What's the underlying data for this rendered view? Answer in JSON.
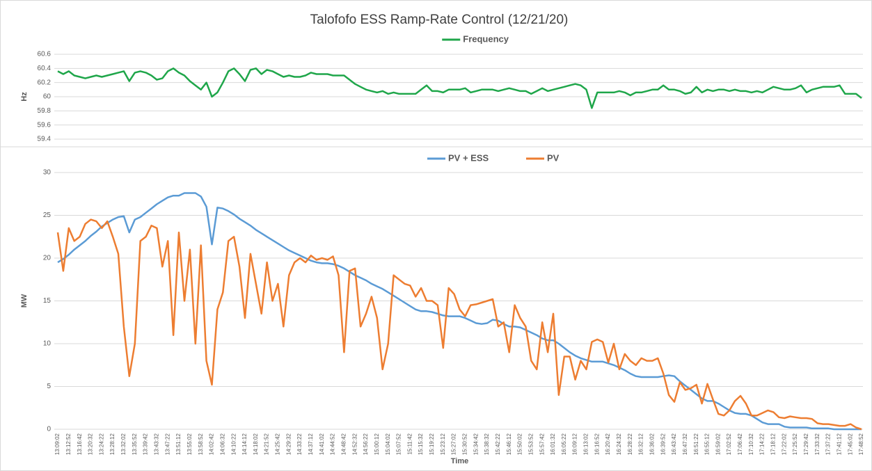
{
  "chart_data": [
    {
      "type": "line",
      "title": "Talofofo ESS Ramp-Rate Control (12/21/20)",
      "ylabel": "Hz",
      "ylim": [
        59.4,
        60.6
      ],
      "yticks": [
        59.4,
        59.6,
        59.8,
        60,
        60.2,
        60.4,
        60.6
      ],
      "grid": true,
      "series": [
        {
          "name": "Frequency",
          "color": "#1fa64a",
          "values": [
            60.36,
            60.32,
            60.36,
            60.3,
            60.28,
            60.26,
            60.28,
            60.3,
            60.28,
            60.3,
            60.32,
            60.34,
            60.36,
            60.22,
            60.34,
            60.36,
            60.34,
            60.3,
            60.24,
            60.26,
            60.36,
            60.4,
            60.34,
            60.3,
            60.22,
            60.16,
            60.1,
            60.2,
            60,
            60.06,
            60.2,
            60.36,
            60.4,
            60.32,
            60.22,
            60.38,
            60.4,
            60.32,
            60.38,
            60.36,
            60.32,
            60.28,
            60.3,
            60.28,
            60.28,
            60.3,
            60.34,
            60.32,
            60.32,
            60.32,
            60.3,
            60.3,
            60.3,
            60.24,
            60.18,
            60.14,
            60.1,
            60.08,
            60.06,
            60.08,
            60.04,
            60.06,
            60.04,
            60.04,
            60.04,
            60.04,
            60.1,
            60.16,
            60.08,
            60.08,
            60.06,
            60.1,
            60.1,
            60.1,
            60.12,
            60.06,
            60.08,
            60.1,
            60.1,
            60.1,
            60.08,
            60.1,
            60.12,
            60.1,
            60.08,
            60.08,
            60.04,
            60.08,
            60.12,
            60.08,
            60.1,
            60.12,
            60.14,
            60.16,
            60.18,
            60.16,
            60.1,
            59.84,
            60.06,
            60.06,
            60.06,
            60.06,
            60.08,
            60.06,
            60.02,
            60.06,
            60.06,
            60.08,
            60.1,
            60.1,
            60.16,
            60.1,
            60.1,
            60.08,
            60.04,
            60.06,
            60.14,
            60.06,
            60.1,
            60.08,
            60.1,
            60.1,
            60.08,
            60.1,
            60.08,
            60.08,
            60.06,
            60.08,
            60.06,
            60.1,
            60.14,
            60.12,
            60.1,
            60.1,
            60.12,
            60.16,
            60.06,
            60.1,
            60.12,
            60.14,
            60.14,
            60.14,
            60.16,
            60.04,
            60.04,
            60.04,
            59.98
          ]
        }
      ]
    },
    {
      "type": "line",
      "ylabel": "MW",
      "xlabel": "Time",
      "ylim": [
        0,
        30
      ],
      "yticks": [
        0,
        5,
        10,
        15,
        20,
        25,
        30
      ],
      "grid": true,
      "categories": [
        "13:09:02",
        null,
        "13:12:52",
        null,
        "13:16:42",
        null,
        "13:20:32",
        null,
        "13:24:22",
        null,
        "13:28:12",
        null,
        "13:32:02",
        null,
        "13:35:52",
        null,
        "13:39:42",
        null,
        "13:43:32",
        null,
        "13:47:22",
        null,
        "13:51:12",
        null,
        "13:55:02",
        null,
        "13:58:52",
        null,
        "14:02:42",
        null,
        "14:06:32",
        null,
        "14:10:22",
        null,
        "14:14:12",
        null,
        "14:18:02",
        null,
        "14:21:52",
        null,
        "14:25:42",
        null,
        "14:29:32",
        null,
        "14:33:22",
        null,
        "14:37:12",
        null,
        "14:41:02",
        null,
        "14:44:52",
        null,
        "14:48:42",
        null,
        "14:52:32",
        null,
        "14:56:22",
        null,
        "15:00:12",
        null,
        "15:04:02",
        null,
        "15:07:52",
        null,
        "15:11:42",
        null,
        "15:15:32",
        null,
        "15:19:22",
        null,
        "15:23:12",
        null,
        "15:27:02",
        null,
        "15:30:52",
        null,
        "15:34:42",
        null,
        "15:38:32",
        null,
        "15:42:22",
        null,
        "15:46:12",
        null,
        "15:50:02",
        null,
        "15:53:52",
        null,
        "15:57:42",
        null,
        "16:01:32",
        null,
        "16:05:22",
        null,
        "16:09:12",
        null,
        "16:13:02",
        null,
        "16:16:52",
        null,
        "16:20:42",
        null,
        "16:24:32",
        null,
        "16:28:22",
        null,
        "16:32:12",
        null,
        "16:36:02",
        null,
        "16:39:52",
        null,
        "16:43:42",
        null,
        "16:47:32",
        null,
        "16:51:22",
        null,
        "16:55:12",
        null,
        "16:59:02",
        null,
        "17:02:52",
        null,
        "17:06:42",
        null,
        "17:10:32",
        null,
        "17:14:22",
        null,
        "17:18:12",
        null,
        "17:22:02",
        null,
        "17:25:52",
        null,
        "17:29:42",
        null,
        "17:33:32",
        null,
        "17:37:22",
        null,
        "17:41:12",
        null,
        "17:45:02",
        null,
        "17:48:52"
      ],
      "series": [
        {
          "name": "PV + ESS",
          "color": "#5b9bd5",
          "values": [
            19.5,
            19.9,
            20.4,
            21,
            21.5,
            22,
            22.6,
            23.1,
            23.7,
            24.1,
            24.5,
            24.8,
            24.9,
            23,
            24.5,
            24.8,
            25.3,
            25.8,
            26.3,
            26.7,
            27.1,
            27.3,
            27.3,
            27.6,
            27.6,
            27.6,
            27.2,
            26,
            21.6,
            25.9,
            25.8,
            25.5,
            25.1,
            24.6,
            24.2,
            23.8,
            23.3,
            22.9,
            22.5,
            22.1,
            21.7,
            21.3,
            20.9,
            20.6,
            20.3,
            20,
            19.7,
            19.5,
            19.4,
            19.4,
            19.3,
            19.1,
            18.8,
            18.4,
            18,
            17.7,
            17.4,
            17,
            16.7,
            16.4,
            16,
            15.6,
            15.2,
            14.8,
            14.4,
            14,
            13.8,
            13.8,
            13.7,
            13.5,
            13.3,
            13.2,
            13.2,
            13.2,
            13,
            12.7,
            12.4,
            12.3,
            12.4,
            12.8,
            12.7,
            12.3,
            12,
            12,
            11.9,
            11.6,
            11.3,
            11,
            10.6,
            10.4,
            10.4,
            10,
            9.5,
            9,
            8.6,
            8.3,
            8.1,
            7.9,
            7.9,
            7.9,
            7.7,
            7.5,
            7.2,
            6.9,
            6.5,
            6.2,
            6.1,
            6.1,
            6.1,
            6.1,
            6.2,
            6.3,
            6.2,
            5.6,
            5.1,
            4.6,
            4.1,
            3.6,
            3.3,
            3.3,
            3,
            2.6,
            2.2,
            1.9,
            1.8,
            1.8,
            1.6,
            1.2,
            0.8,
            0.6,
            0.6,
            0.6,
            0.3,
            0.2,
            0.2,
            0.2,
            0.2,
            0.1,
            0.1,
            0.1,
            0.1,
            0,
            0,
            0,
            0,
            0,
            0
          ]
        },
        {
          "name": "PV",
          "color": "#ed7d31",
          "values": [
            23,
            18.5,
            23.5,
            22,
            22.5,
            24,
            24.5,
            24.3,
            23.5,
            24.3,
            22.5,
            20.5,
            12,
            6.2,
            10,
            22,
            22.5,
            23.8,
            23.5,
            19,
            22,
            11,
            23,
            15,
            21,
            10,
            21.5,
            8,
            5.2,
            14,
            16,
            22,
            22.5,
            19,
            13,
            20.5,
            17,
            13.5,
            19.5,
            15,
            17,
            12,
            18,
            19.5,
            20,
            19.5,
            20.3,
            19.8,
            20,
            19.8,
            20.2,
            18,
            9,
            18.5,
            18.8,
            12,
            13.5,
            15.5,
            13,
            7,
            10,
            18,
            17.5,
            17,
            16.8,
            15.5,
            16.5,
            15,
            15,
            14.5,
            9.5,
            16.5,
            15.8,
            14,
            13.2,
            14.5,
            14.6,
            14.8,
            15,
            15.2,
            12,
            12.5,
            9,
            14.5,
            13,
            12,
            8,
            7,
            12.5,
            9,
            13.5,
            4,
            8.5,
            8.5,
            5.8,
            8,
            7,
            10.2,
            10.5,
            10.2,
            7.8,
            10,
            7,
            8.8,
            8,
            7.5,
            8.3,
            8,
            8,
            8.3,
            6.5,
            4,
            3.2,
            5.5,
            4.6,
            4.8,
            5.2,
            3,
            5.3,
            3.5,
            1.8,
            1.6,
            2.2,
            3.3,
            3.9,
            3,
            1.6,
            1.6,
            1.9,
            2.2,
            2,
            1.4,
            1.3,
            1.5,
            1.4,
            1.3,
            1.3,
            1.2,
            0.7,
            0.6,
            0.6,
            0.5,
            0.4,
            0.4,
            0.6,
            0.2,
            0
          ]
        }
      ]
    }
  ]
}
